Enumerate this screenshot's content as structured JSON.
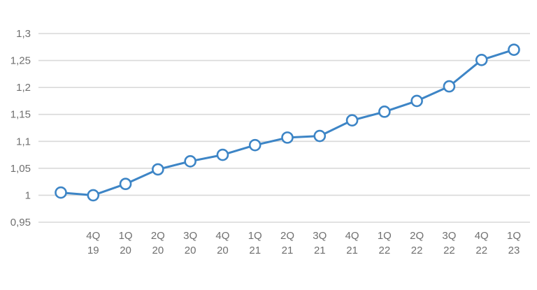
{
  "chart_data": {
    "type": "line",
    "categories": [
      "",
      "4Q 19",
      "1Q 20",
      "2Q 20",
      "3Q 20",
      "4Q 20",
      "1Q 21",
      "2Q 21",
      "3Q 21",
      "4Q 21",
      "1Q 22",
      "2Q 22",
      "3Q 22",
      "4Q 22",
      "1Q 23"
    ],
    "category_lines": [
      [],
      [
        "4Q",
        "19"
      ],
      [
        "1Q",
        "20"
      ],
      [
        "2Q",
        "20"
      ],
      [
        "3Q",
        "20"
      ],
      [
        "4Q",
        "20"
      ],
      [
        "1Q",
        "21"
      ],
      [
        "2Q",
        "21"
      ],
      [
        "3Q",
        "21"
      ],
      [
        "4Q",
        "21"
      ],
      [
        "1Q",
        "22"
      ],
      [
        "2Q",
        "22"
      ],
      [
        "3Q",
        "22"
      ],
      [
        "4Q",
        "22"
      ],
      [
        "1Q",
        "23"
      ]
    ],
    "series": [
      {
        "values": [
          1.005,
          1.0,
          1.021,
          1.048,
          1.063,
          1.075,
          1.093,
          1.107,
          1.11,
          1.139,
          1.155,
          1.175,
          1.202,
          1.251,
          1.27
        ],
        "color": "#3d85c6"
      }
    ],
    "ylim": [
      0.95,
      1.3
    ],
    "y_ticks": [
      0.95,
      1.0,
      1.05,
      1.1,
      1.15,
      1.2,
      1.25,
      1.3
    ],
    "y_tick_labels": [
      "0,95",
      "1",
      "1,05",
      "1,1",
      "1,15",
      "1,2",
      "1,25",
      "1,3"
    ],
    "grid": true,
    "legend": "none",
    "title": "",
    "xlabel": "",
    "ylabel": ""
  }
}
